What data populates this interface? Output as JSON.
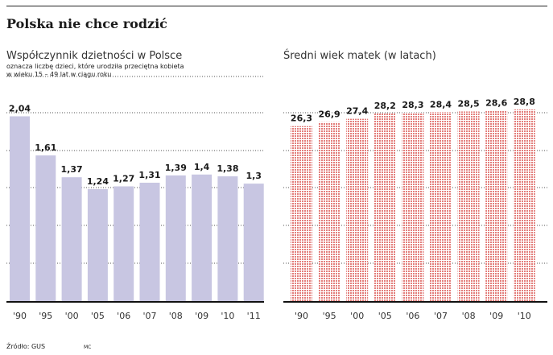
{
  "title": "Polska nie chce rodzić",
  "source": "Źródło: GUS",
  "author": "MC",
  "chart_data": [
    {
      "type": "bar",
      "title": "Współczynnik dzietności w Polsce",
      "subtitle": [
        "oznacza liczbę dzieci, które urodziła przeciętna kobieta",
        "w wieku 15 – 49 lat w ciągu roku"
      ],
      "categories": [
        "'90",
        "'95",
        "'00",
        "'05",
        "'06",
        "'07",
        "'08",
        "'09",
        "'10",
        "'11"
      ],
      "values": [
        2.04,
        1.61,
        1.37,
        1.24,
        1.27,
        1.31,
        1.39,
        1.4,
        1.38,
        1.3
      ],
      "labels": [
        "2,04",
        "1,61",
        "1,37",
        "1,24",
        "1,27",
        "1,31",
        "1,39",
        "1,4",
        "1,38",
        "1,3"
      ],
      "color": "#c8c6e2",
      "grid": true
    },
    {
      "type": "bar",
      "title": "Średni wiek matek (w latach)",
      "categories": [
        "'90",
        "'95",
        "'00",
        "'05",
        "'06",
        "'07",
        "'08",
        "'09",
        "'10"
      ],
      "values": [
        26.3,
        26.9,
        27.4,
        28.2,
        28.3,
        28.4,
        28.5,
        28.6,
        28.8
      ],
      "labels": [
        "26,3",
        "26,9",
        "27,4",
        "28,2",
        "28,3",
        "28,4",
        "28,5",
        "28,6",
        "28,8"
      ],
      "color": "#d9534f",
      "pattern": "dotted",
      "grid": true
    }
  ]
}
